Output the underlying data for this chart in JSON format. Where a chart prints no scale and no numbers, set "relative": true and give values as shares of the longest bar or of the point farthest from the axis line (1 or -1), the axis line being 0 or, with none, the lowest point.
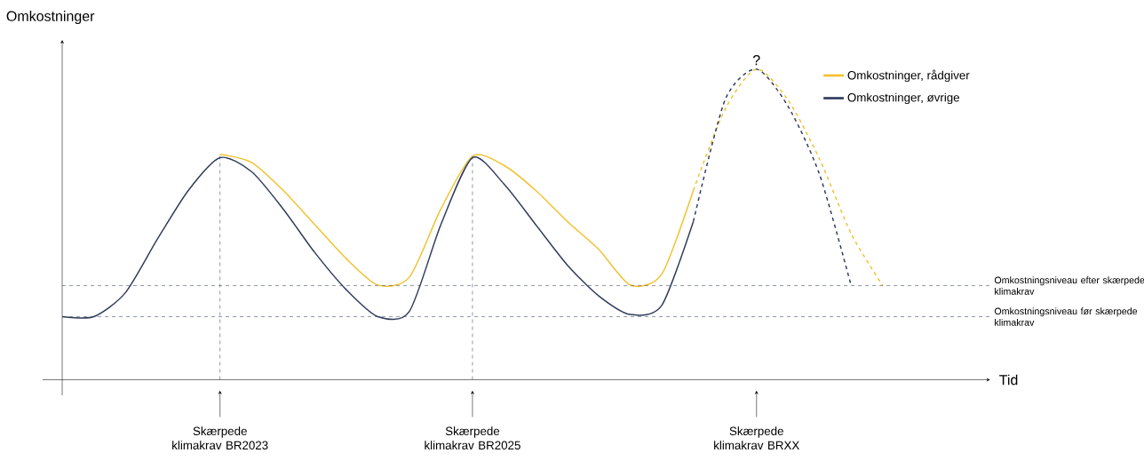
{
  "chart_data": {
    "type": "line",
    "relative": true,
    "ylabel": "Omkostninger",
    "legend": "top right",
    "categories": [
      null,
      null,
      null,
      null,
      null,
      "Skærpede klimakrav BR2023",
      null,
      null,
      null,
      null,
      null,
      null,
      null,
      "Skærpede klimakrav BR2025",
      null,
      null,
      null,
      null,
      null,
      null,
      null,
      null,
      "Skærpede klimakrav BRXX",
      null,
      null,
      null,
      null
    ],
    "series": [
      {
        "name": "Omkostninger, rådgiver",
        "color": "#f2c12e",
        "line_style": "solid",
        "values": [
          null,
          null,
          null,
          null,
          null,
          0.726,
          0.7,
          0.61,
          0.5,
          0.39,
          0.305,
          0.33,
          0.55,
          0.72,
          0.69,
          0.61,
          0.51,
          0.42,
          0.305,
          0.34,
          0.61,
          null,
          null,
          null,
          null,
          null,
          null
        ]
      },
      {
        "color": "#f2c12e",
        "line_style": "dashed",
        "values": [
          null,
          null,
          null,
          null,
          null,
          null,
          null,
          null,
          null,
          null,
          null,
          null,
          null,
          null,
          null,
          null,
          null,
          null,
          null,
          null,
          0.61,
          0.87,
          1,
          0.9,
          0.71,
          0.47,
          0.303
        ]
      },
      {
        "name": "Omkostninger, øvrige",
        "color": "#2f3b5c",
        "line_style": "solid",
        "values": [
          0.203,
          0.203,
          0.28,
          0.45,
          0.61,
          0.715,
          0.67,
          0.55,
          0.41,
          0.29,
          0.203,
          0.22,
          0.5,
          0.715,
          0.63,
          0.5,
          0.37,
          0.27,
          0.21,
          0.24,
          0.51,
          null,
          null,
          null,
          null,
          null,
          null
        ]
      },
      {
        "color": "#2f3b5c",
        "line_style": "dashed",
        "values": [
          null,
          null,
          null,
          null,
          null,
          null,
          null,
          null,
          null,
          null,
          null,
          null,
          null,
          null,
          null,
          null,
          null,
          null,
          null,
          null,
          0.51,
          0.9,
          1,
          0.88,
          0.66,
          0.303,
          null
        ]
      }
    ],
    "ref_lines": [
      {
        "axis": "y",
        "value": 0.303,
        "label": "Omkostningsniveau efter skærpede klimakrav",
        "color": "#2f3b5c",
        "line_style": "dashed"
      },
      {
        "axis": "y",
        "value": 0.203,
        "label": "Omkostningsniveau før skærpede klimakrav",
        "color": "#2f3b5c",
        "line_style": "dashed"
      },
      {
        "axis": "x",
        "value": "Skærpede klimakrav BR2023",
        "color": "#2f3b5c",
        "line_style": "dashed"
      },
      {
        "axis": "x",
        "value": "Skærpede klimakrav BR2025",
        "color": "#2f3b5c",
        "line_style": "dashed"
      }
    ],
    "annotations": [
      {
        "text": "?",
        "x": "Skærpede klimakrav BRXX",
        "y": 1
      },
      "Tid"
    ]
  }
}
